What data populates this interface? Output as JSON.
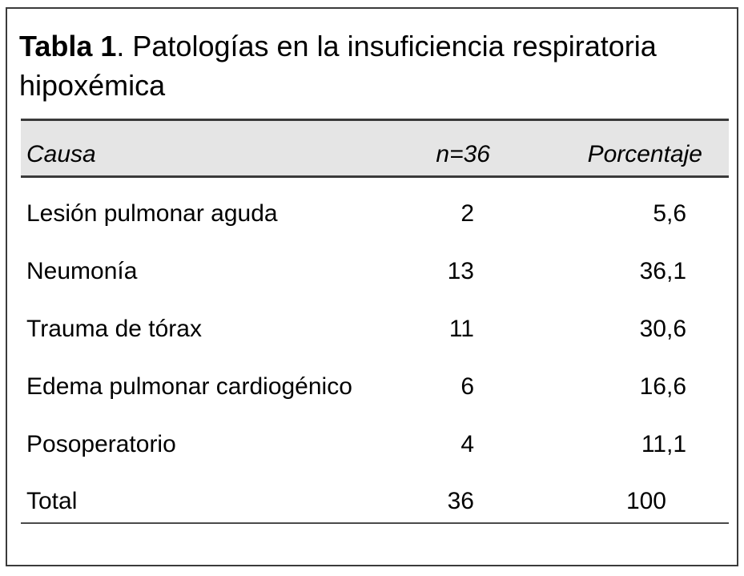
{
  "title": {
    "label": "Tabla 1",
    "rest": ". Patologías en la insuficiencia respiratoria hipoxémica"
  },
  "table": {
    "columns": [
      "Causa",
      "n=36",
      "Porcentaje"
    ],
    "rows": [
      {
        "causa": "Lesión pulmonar aguda",
        "n": "2",
        "pct_int": "5",
        "pct_frac": ",6"
      },
      {
        "causa": "Neumonía",
        "n": "13",
        "pct_int": "36",
        "pct_frac": ",1"
      },
      {
        "causa": "Trauma de tórax",
        "n": "11",
        "pct_int": "30",
        "pct_frac": ",6"
      },
      {
        "causa": "Edema pulmonar cardiogénico",
        "n": "6",
        "pct_int": "16",
        "pct_frac": ",6"
      },
      {
        "causa": "Posoperatorio",
        "n": "4",
        "pct_int": "11",
        "pct_frac": ",1"
      },
      {
        "causa": "Total",
        "n": "36",
        "pct_int": "100",
        "pct_frac": ""
      }
    ]
  },
  "chart_data": {
    "type": "table",
    "title": "Tabla 1. Patologías en la insuficiencia respiratoria hipoxémica",
    "columns": [
      "Causa",
      "n=36",
      "Porcentaje"
    ],
    "categories": [
      "Lesión pulmonar aguda",
      "Neumonía",
      "Trauma de tórax",
      "Edema pulmonar cardiogénico",
      "Posoperatorio",
      "Total"
    ],
    "series": [
      {
        "name": "n=36",
        "values": [
          2,
          13,
          11,
          6,
          4,
          36
        ]
      },
      {
        "name": "Porcentaje",
        "values": [
          5.6,
          36.1,
          30.6,
          16.6,
          11.1,
          100
        ]
      }
    ]
  },
  "colors": {
    "header_bg": "#e5e5e5",
    "rule_dark": "#3a3a3a",
    "rule_light": "#4a4a4a",
    "frame_border": "#3b3b3b",
    "text": "#000000",
    "background": "#ffffff"
  }
}
